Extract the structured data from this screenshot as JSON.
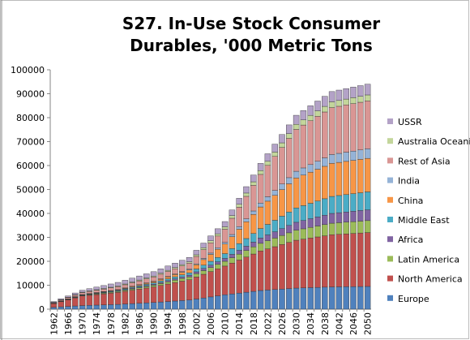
{
  "chart_data": {
    "type": "stacked-bar",
    "title": "S27. In-Use Stock Consumer Durables, '000 Metric Tons",
    "categories": [
      "1962",
      null,
      "1966",
      null,
      "1970",
      null,
      "1974",
      null,
      "1978",
      null,
      "1982",
      null,
      "1986",
      null,
      "1990",
      null,
      "1994",
      null,
      "1998",
      null,
      "2002",
      null,
      "2006",
      null,
      "2010",
      null,
      "2014",
      null,
      "2018",
      null,
      "2022",
      null,
      "2026",
      null,
      "2030",
      null,
      "2034",
      null,
      "2038",
      null,
      "2042",
      null,
      "2046",
      null,
      "2050"
    ],
    "ylim": [
      0,
      100000
    ],
    "yticks": [
      0,
      10000,
      20000,
      30000,
      40000,
      50000,
      60000,
      70000,
      80000,
      90000,
      100000
    ],
    "legend": "right",
    "series": [
      {
        "name": "Europe",
        "color": "#4f81bd",
        "values": [
          800,
          980,
          1150,
          1330,
          1500,
          1600,
          1700,
          1800,
          1900,
          2000,
          2160,
          2320,
          2480,
          2640,
          2800,
          3000,
          3200,
          3400,
          3600,
          3800,
          4240,
          4680,
          5120,
          5560,
          6000,
          6360,
          6720,
          7080,
          7440,
          7800,
          8000,
          8200,
          8400,
          8600,
          8800,
          8900,
          9000,
          9100,
          9200,
          9300,
          9340,
          9380,
          9420,
          9460,
          9500
        ]
      },
      {
        "name": "North America",
        "color": "#c0504d",
        "values": [
          1500,
          2130,
          2750,
          3380,
          4000,
          4200,
          4400,
          4600,
          4800,
          5000,
          5300,
          5600,
          5900,
          6200,
          6500,
          6900,
          7300,
          7700,
          8100,
          8500,
          9200,
          9900,
          10600,
          11300,
          12000,
          12900,
          13800,
          14700,
          15600,
          16500,
          17200,
          17900,
          18600,
          19300,
          20000,
          20360,
          20720,
          21080,
          21440,
          21800,
          21940,
          22080,
          22220,
          22360,
          22500
        ]
      },
      {
        "name": "Latin America",
        "color": "#9bbb59",
        "values": [
          100,
          130,
          160,
          190,
          220,
          260,
          290,
          330,
          360,
          400,
          460,
          520,
          580,
          640,
          700,
          800,
          900,
          1000,
          1100,
          1200,
          1360,
          1520,
          1680,
          1840,
          2000,
          2240,
          2480,
          2720,
          2960,
          3200,
          3400,
          3600,
          3800,
          4000,
          4200,
          4320,
          4440,
          4560,
          4680,
          4800,
          4840,
          4880,
          4920,
          4960,
          5000
        ]
      },
      {
        "name": "Africa",
        "color": "#8064a2",
        "values": [
          50,
          60,
          70,
          90,
          100,
          120,
          140,
          160,
          180,
          200,
          240,
          280,
          320,
          360,
          400,
          460,
          520,
          580,
          640,
          700,
          800,
          900,
          1000,
          1100,
          1200,
          1400,
          1600,
          1800,
          2000,
          2200,
          2420,
          2640,
          2860,
          3080,
          3300,
          3460,
          3620,
          3780,
          3940,
          4100,
          4180,
          4260,
          4340,
          4420,
          4500
        ]
      },
      {
        "name": "Middle East",
        "color": "#4bacc6",
        "values": [
          50,
          80,
          100,
          130,
          150,
          180,
          210,
          240,
          270,
          300,
          360,
          420,
          480,
          540,
          600,
          680,
          760,
          840,
          920,
          1000,
          1200,
          1400,
          1600,
          1800,
          2000,
          2400,
          2800,
          3200,
          3600,
          4000,
          4400,
          4800,
          5200,
          5600,
          6000,
          6220,
          6440,
          6660,
          6880,
          7100,
          7180,
          7260,
          7340,
          7420,
          7500
        ]
      },
      {
        "name": "China",
        "color": "#f79646",
        "values": [
          50,
          60,
          70,
          90,
          100,
          120,
          140,
          160,
          180,
          200,
          260,
          320,
          380,
          440,
          500,
          640,
          780,
          920,
          1060,
          1200,
          1760,
          2320,
          2880,
          3440,
          4000,
          5000,
          6000,
          7000,
          8000,
          9000,
          9700,
          10400,
          11100,
          11800,
          12500,
          12760,
          13020,
          13280,
          13540,
          13800,
          13840,
          13880,
          13920,
          13960,
          14000
        ]
      },
      {
        "name": "India",
        "color": "#95b3d7",
        "values": [
          20,
          25,
          30,
          35,
          40,
          48,
          56,
          64,
          72,
          80,
          94,
          108,
          122,
          136,
          150,
          180,
          210,
          240,
          270,
          300,
          380,
          460,
          540,
          620,
          700,
          880,
          1060,
          1240,
          1420,
          1600,
          1840,
          2080,
          2320,
          2560,
          2800,
          2980,
          3160,
          3340,
          3520,
          3700,
          3760,
          3820,
          3880,
          3940,
          4000
        ]
      },
      {
        "name": "Rest of Asia",
        "color": "#d99694",
        "values": [
          200,
          350,
          500,
          650,
          800,
          880,
          960,
          1040,
          1120,
          1200,
          1320,
          1440,
          1560,
          1680,
          1800,
          1940,
          2080,
          2220,
          2360,
          2500,
          3100,
          3700,
          4300,
          4900,
          5500,
          6800,
          8100,
          9400,
          10700,
          12000,
          13100,
          14200,
          15300,
          16400,
          17500,
          17920,
          18340,
          18760,
          19180,
          19600,
          19680,
          19760,
          19840,
          19920,
          20000
        ]
      },
      {
        "name": "Australia Oceania",
        "color": "#c3d69b",
        "values": [
          100,
          130,
          150,
          180,
          200,
          220,
          240,
          260,
          280,
          300,
          320,
          340,
          360,
          380,
          400,
          440,
          480,
          520,
          560,
          600,
          680,
          760,
          840,
          920,
          1000,
          1120,
          1240,
          1360,
          1480,
          1600,
          1700,
          1800,
          1900,
          2000,
          2100,
          2160,
          2220,
          2280,
          2340,
          2400,
          2420,
          2440,
          2460,
          2480,
          2500
        ]
      },
      {
        "name": "USSR",
        "color": "#b3a2c7",
        "values": [
          300,
          430,
          550,
          680,
          800,
          940,
          1080,
          1220,
          1360,
          1500,
          1560,
          1620,
          1680,
          1740,
          1800,
          1800,
          1800,
          1800,
          1800,
          1800,
          1880,
          1960,
          2040,
          2120,
          2200,
          2360,
          2520,
          2680,
          2840,
          3000,
          3160,
          3320,
          3480,
          3640,
          3800,
          3900,
          4000,
          4100,
          4200,
          4300,
          4340,
          4380,
          4420,
          4460,
          4500
        ]
      }
    ]
  }
}
